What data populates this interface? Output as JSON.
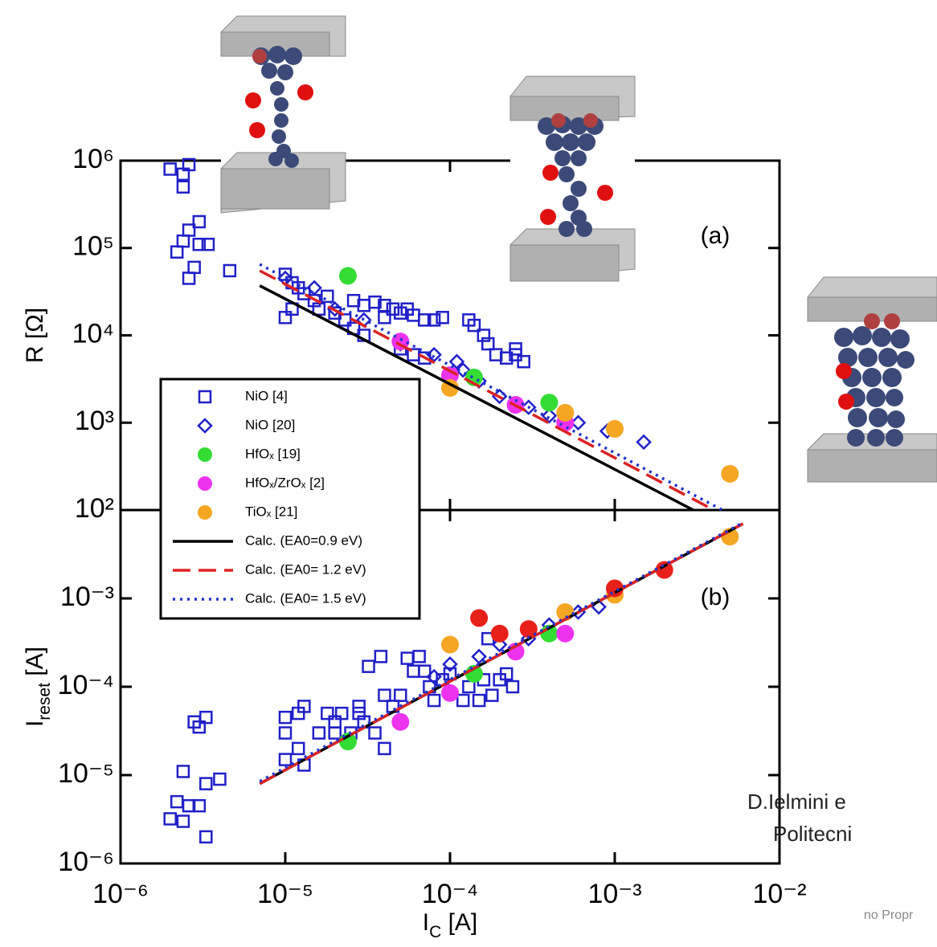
{
  "chart_data": [
    {
      "type": "scatter",
      "log_x": true,
      "log_y": true,
      "xlim": [
        1e-06,
        0.01
      ],
      "ylim": [
        100,
        1000000.0
      ],
      "yticks": [
        {
          "value": 100,
          "label": "10²"
        },
        {
          "value": 1000,
          "label": "10³"
        },
        {
          "value": 10000,
          "label": "10⁴"
        },
        {
          "value": 100000,
          "label": "10⁵"
        },
        {
          "value": 1000000,
          "label": "10⁶"
        }
      ],
      "ylabel": {
        "text": "R [Ω]"
      },
      "annotation": "(a)",
      "legend": "lower left",
      "series": [
        {
          "name": "NiO [4]",
          "color": "#2020c8",
          "marker": "square-open",
          "x": [
            2e-06,
            2.4e-06,
            2.4e-06,
            2.6e-06,
            2.2e-06,
            2.4e-06,
            2.6e-06,
            3e-06,
            3.4e-06,
            2.6e-06,
            2.8e-06,
            4.6e-06,
            3e-06,
            1e-05,
            1.1e-05,
            1.2e-05,
            1.1e-05,
            1e-05,
            1.3e-05,
            1.5e-05,
            1.6e-05,
            1.8e-05,
            2e-05,
            2.3e-05,
            2.6e-05,
            3e-05,
            2.6e-05,
            3e-05,
            3.5e-05,
            4e-05,
            4.5e-05,
            5e-05,
            5.5e-05,
            6e-05,
            7e-05,
            8e-05,
            9e-05,
            5e-05,
            6e-05,
            7e-05,
            0.00013,
            0.00014,
            0.00016,
            0.00017,
            0.00019,
            0.00022,
            0.00025,
            0.00028,
            0.00025,
            4e-05
          ],
          "values": [
            800000.0,
            700000.0,
            500000.0,
            900000.0,
            90000.0,
            120000.0,
            160000.0,
            110000.0,
            110000.0,
            45000.0,
            60000.0,
            55000.0,
            200000.0,
            50000.0,
            40000.0,
            35000.0,
            20000.0,
            16000.0,
            30000.0,
            25000.0,
            20000.0,
            28000.0,
            18000.0,
            15000.0,
            12000.0,
            10000.0,
            25000.0,
            22000.0,
            24000.0,
            22000.0,
            20000.0,
            18000.0,
            20000.0,
            17000.0,
            15000.0,
            15000.0,
            16000.0,
            7000.0,
            6000.0,
            5500.0,
            15000.0,
            13000.0,
            10000.0,
            8000.0,
            6000.0,
            5500.0,
            6000.0,
            5000.0,
            7000.0,
            16000.0
          ]
        },
        {
          "name": "NiO [20]",
          "color": "#2020c8",
          "marker": "diamond-open",
          "x": [
            1e-05,
            1.5e-05,
            2e-05,
            3e-05,
            5e-05,
            8e-05,
            0.00012,
            0.00015,
            0.0002,
            0.0003,
            0.0004,
            0.0006,
            0.0009,
            0.0015,
            0.00011
          ],
          "values": [
            45000.0,
            35000.0,
            20000.0,
            15000.0,
            8000.0,
            6000.0,
            4000.0,
            3000.0,
            2000.0,
            1500.0,
            1200.0,
            1000.0,
            800,
            600,
            5000.0
          ]
        },
        {
          "name": "HfOₓ [19]",
          "color": "#33dd33",
          "marker": "circle",
          "x": [
            2.4e-05,
            0.00014,
            0.0004
          ],
          "values": [
            48000.0,
            3300.0,
            1700.0
          ]
        },
        {
          "name": "HfOₓ/ZrOₓ [2]",
          "color": "#ee33ee",
          "marker": "circle",
          "x": [
            5e-05,
            0.0001,
            0.00025,
            0.0005
          ],
          "values": [
            8500.0,
            3500.0,
            1600.0,
            1000.0
          ]
        },
        {
          "name": "TiOₓ [21]",
          "color": "#f5a623",
          "marker": "circle",
          "x": [
            0.0001,
            0.0005,
            0.001,
            0.005
          ],
          "values": [
            2500.0,
            1300.0,
            850,
            260
          ]
        },
        {
          "name": "Calc. (EA0=0.9 eV)",
          "color": "#000000",
          "marker": "line",
          "dash": "solid",
          "x": [
            7e-06,
            0.003
          ],
          "values": [
            37000.0,
            100
          ]
        },
        {
          "name": "Calc. (EA0= 1.2 eV)",
          "color": "#dd2222",
          "marker": "line",
          "dash": "dashed",
          "x": [
            7e-06,
            0.004
          ],
          "values": [
            55000.0,
            100
          ]
        },
        {
          "name": "Calc. (EA0= 1.5 eV)",
          "color": "#2233cc",
          "marker": "line",
          "dash": "dotted",
          "x": [
            7e-06,
            0.0045
          ],
          "values": [
            65000.0,
            100
          ]
        }
      ]
    },
    {
      "type": "scatter",
      "log_x": true,
      "log_y": true,
      "xlim": [
        1e-06,
        0.01
      ],
      "ylim": [
        1e-06,
        0.01
      ],
      "xticks": [
        {
          "value": 1e-06,
          "label": "10⁻⁶"
        },
        {
          "value": 1e-05,
          "label": "10⁻⁵"
        },
        {
          "value": 0.0001,
          "label": "10⁻⁴"
        },
        {
          "value": 0.001,
          "label": "10⁻³"
        },
        {
          "value": 0.01,
          "label": "10⁻²"
        }
      ],
      "yticks": [
        {
          "value": 1e-06,
          "label": "10⁻⁶"
        },
        {
          "value": 1e-05,
          "label": "10⁻⁵"
        },
        {
          "value": 0.0001,
          "label": "10⁻⁴"
        },
        {
          "value": 0.001,
          "label": "10⁻³"
        }
      ],
      "xlabel": {
        "text": "I",
        "sub": "C",
        "after": " [A]"
      },
      "ylabel": {
        "text": "I",
        "sub": "reset",
        "after": " [A]"
      },
      "annotation": "(b)",
      "series": [
        {
          "color": "#2020c8",
          "marker": "square-open",
          "x": [
            2e-06,
            2.2e-06,
            2.4e-06,
            2.6e-06,
            2.4e-06,
            2.8e-06,
            3e-06,
            3.3e-06,
            3e-06,
            3.3e-06,
            4e-06,
            3.3e-06,
            1e-05,
            1e-05,
            1e-05,
            1.2e-05,
            1.3e-05,
            1.2e-05,
            1.3e-05,
            1.6e-05,
            1.8e-05,
            2e-05,
            2.2e-05,
            2.5e-05,
            2.8e-05,
            3e-05,
            3.2e-05,
            3.8e-05,
            3.5e-05,
            4e-05,
            4.5e-05,
            5e-05,
            5.5e-05,
            6e-05,
            6.5e-05,
            7e-05,
            7.5e-05,
            8e-05,
            9e-05,
            0.0001,
            0.00012,
            0.00013,
            0.00015,
            0.00016,
            0.00018,
            0.0002,
            0.00017,
            0.00022,
            0.00024,
            2e-05,
            2.8e-05,
            4e-05
          ],
          "values": [
            3.2e-06,
            5e-06,
            3e-06,
            4.5e-06,
            1.1e-05,
            4e-05,
            3.5e-05,
            4.5e-05,
            4.5e-06,
            8e-06,
            9e-06,
            2e-06,
            1.5e-05,
            3e-05,
            4.5e-05,
            5e-05,
            6e-05,
            2e-05,
            1.3e-05,
            3e-05,
            5e-05,
            4e-05,
            5e-05,
            3e-05,
            5e-05,
            4e-05,
            0.00017,
            0.00022,
            3e-05,
            2e-05,
            6e-05,
            8e-05,
            0.00021,
            0.00015,
            0.00022,
            0.00015,
            0.0001,
            7e-05,
            0.00012,
            0.00014,
            7e-05,
            0.0001,
            7e-05,
            0.00012,
            8e-05,
            0.00012,
            0.00035,
            0.00014,
            0.0001,
            3e-05,
            6e-05,
            8e-05
          ]
        },
        {
          "color": "#2020c8",
          "marker": "diamond-open",
          "x": [
            8e-05,
            0.0001,
            0.00015,
            0.0002,
            0.0003,
            0.0004,
            0.0006,
            0.0008
          ],
          "values": [
            0.00013,
            0.00018,
            0.00022,
            0.0003,
            0.00035,
            0.0005,
            0.0007,
            0.0008
          ]
        },
        {
          "color": "#33dd33",
          "marker": "circle",
          "x": [
            2.4e-05,
            0.00014,
            0.0004
          ],
          "values": [
            2.4e-05,
            0.00014,
            0.0004
          ]
        },
        {
          "color": "#ee33ee",
          "marker": "circle",
          "x": [
            5e-05,
            0.0001,
            0.00025,
            0.0005
          ],
          "values": [
            4e-05,
            8.5e-05,
            0.00025,
            0.0004
          ]
        },
        {
          "color": "#f5a623",
          "marker": "circle",
          "x": [
            0.0001,
            0.0005,
            0.001,
            0.005
          ],
          "values": [
            0.0003,
            0.0007,
            0.0011,
            0.005
          ]
        },
        {
          "color": "#e8201a",
          "marker": "circle",
          "x": [
            0.00015,
            0.0002,
            0.0003,
            0.001,
            0.002
          ],
          "values": [
            0.0006,
            0.0004,
            0.00045,
            0.0013,
            0.0021
          ]
        },
        {
          "color": "#000000",
          "marker": "line",
          "dash": "solid",
          "x": [
            7e-06,
            0.006
          ],
          "values": [
            8e-06,
            0.007
          ]
        },
        {
          "color": "#dd2222",
          "marker": "line",
          "dash": "dashed",
          "x": [
            7e-06,
            0.006
          ],
          "values": [
            8e-06,
            0.007
          ]
        },
        {
          "color": "#2233cc",
          "marker": "line",
          "dash": "dotted",
          "x": [
            7e-06,
            0.006
          ],
          "values": [
            8.5e-06,
            0.0072
          ]
        }
      ]
    }
  ],
  "credits": [
    "D.Ielmini e",
    "Politecni",
    "no Propr"
  ]
}
